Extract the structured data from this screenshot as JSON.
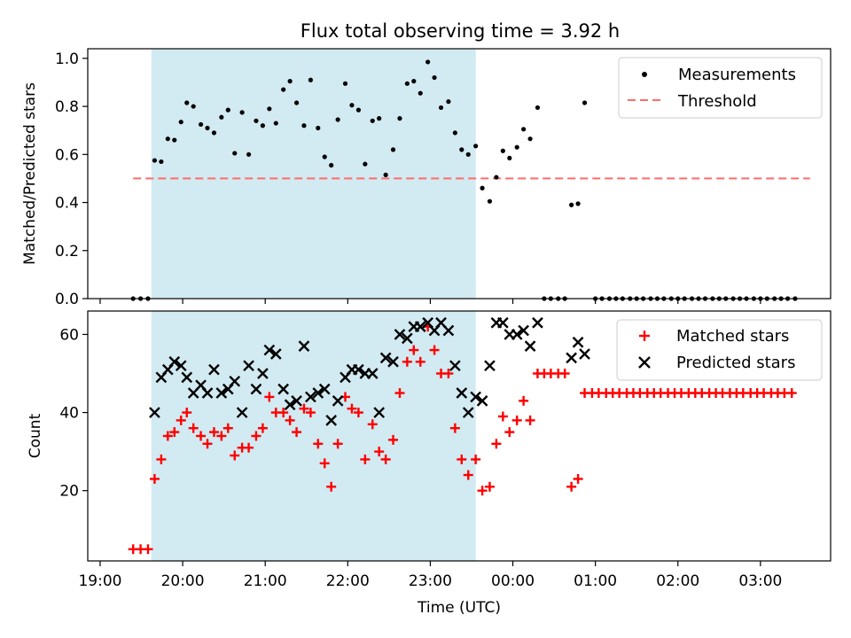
{
  "title": "Flux total observing time = 3.92 h",
  "chart_data": [
    {
      "type": "scatter",
      "ylabel": "Matched/Predicted stars",
      "ylim": [
        0,
        1.04
      ],
      "xlim_hours": [
        18.85,
        27.85
      ],
      "yticks": [
        "0.0",
        "0.2",
        "0.4",
        "0.6",
        "0.8",
        "1.0"
      ],
      "shaded_span_hours": [
        19.62,
        23.55
      ],
      "threshold": {
        "value": 0.5,
        "x_hours": [
          19.4,
          27.6
        ]
      },
      "legend": [
        "Measurements",
        "Threshold"
      ],
      "legend_position": "upper right",
      "series": [
        {
          "name": "Measurements",
          "points": [
            [
              19.4,
              0.0
            ],
            [
              19.49,
              0.0
            ],
            [
              19.58,
              0.0
            ],
            [
              19.66,
              0.575
            ],
            [
              19.74,
              0.57
            ],
            [
              19.82,
              0.665
            ],
            [
              19.9,
              0.66
            ],
            [
              19.98,
              0.735
            ],
            [
              20.05,
              0.815
            ],
            [
              20.13,
              0.8
            ],
            [
              20.22,
              0.725
            ],
            [
              20.3,
              0.71
            ],
            [
              20.38,
              0.69
            ],
            [
              20.47,
              0.755
            ],
            [
              20.55,
              0.785
            ],
            [
              20.63,
              0.605
            ],
            [
              20.72,
              0.775
            ],
            [
              20.8,
              0.6
            ],
            [
              20.89,
              0.74
            ],
            [
              20.97,
              0.72
            ],
            [
              21.05,
              0.79
            ],
            [
              21.13,
              0.73
            ],
            [
              21.22,
              0.87
            ],
            [
              21.3,
              0.905
            ],
            [
              21.38,
              0.815
            ],
            [
              21.47,
              0.72
            ],
            [
              21.55,
              0.91
            ],
            [
              21.64,
              0.71
            ],
            [
              21.72,
              0.59
            ],
            [
              21.8,
              0.555
            ],
            [
              21.88,
              0.745
            ],
            [
              21.97,
              0.895
            ],
            [
              22.05,
              0.805
            ],
            [
              22.13,
              0.785
            ],
            [
              22.21,
              0.56
            ],
            [
              22.3,
              0.74
            ],
            [
              22.38,
              0.75
            ],
            [
              22.46,
              0.515
            ],
            [
              22.55,
              0.62
            ],
            [
              22.63,
              0.75
            ],
            [
              22.72,
              0.895
            ],
            [
              22.8,
              0.905
            ],
            [
              22.88,
              0.855
            ],
            [
              22.97,
              0.985
            ],
            [
              23.05,
              0.92
            ],
            [
              23.13,
              0.795
            ],
            [
              23.22,
              0.82
            ],
            [
              23.3,
              0.69
            ],
            [
              23.38,
              0.62
            ],
            [
              23.46,
              0.6
            ],
            [
              23.55,
              0.635
            ],
            [
              23.63,
              0.46
            ],
            [
              23.72,
              0.405
            ],
            [
              23.8,
              0.505
            ],
            [
              23.88,
              0.615
            ],
            [
              23.96,
              0.585
            ],
            [
              24.05,
              0.63
            ],
            [
              24.13,
              0.705
            ],
            [
              24.21,
              0.665
            ],
            [
              24.3,
              0.795
            ],
            [
              24.38,
              0.0
            ],
            [
              24.46,
              0.0
            ],
            [
              24.55,
              0.0
            ],
            [
              24.63,
              0.0
            ],
            [
              24.71,
              0.39
            ],
            [
              24.79,
              0.395
            ],
            [
              24.87,
              0.815
            ],
            [
              25.0,
              0.0
            ],
            [
              25.08,
              0.0
            ],
            [
              25.17,
              0.0
            ],
            [
              25.25,
              0.0
            ],
            [
              25.33,
              0.0
            ],
            [
              25.42,
              0.0
            ],
            [
              25.5,
              0.0
            ],
            [
              25.58,
              0.0
            ],
            [
              25.67,
              0.0
            ],
            [
              25.75,
              0.0
            ],
            [
              25.83,
              0.0
            ],
            [
              25.92,
              0.0
            ],
            [
              26.0,
              0.0
            ],
            [
              26.08,
              0.0
            ],
            [
              26.17,
              0.0
            ],
            [
              26.25,
              0.0
            ],
            [
              26.33,
              0.0
            ],
            [
              26.42,
              0.0
            ],
            [
              26.5,
              0.0
            ],
            [
              26.58,
              0.0
            ],
            [
              26.67,
              0.0
            ],
            [
              26.75,
              0.0
            ],
            [
              26.83,
              0.0
            ],
            [
              26.92,
              0.0
            ],
            [
              27.0,
              0.0
            ],
            [
              27.08,
              0.0
            ],
            [
              27.17,
              0.0
            ],
            [
              27.25,
              0.0
            ],
            [
              27.33,
              0.0
            ],
            [
              27.42,
              0.0
            ]
          ]
        }
      ]
    },
    {
      "type": "scatter",
      "xlabel": "Time (UTC)",
      "ylabel": "Count",
      "ylim": [
        2,
        66
      ],
      "xlim_hours": [
        18.85,
        27.85
      ],
      "yticks": [
        "20",
        "40",
        "60"
      ],
      "xticks": [
        "19:00",
        "20:00",
        "21:00",
        "22:00",
        "23:00",
        "00:00",
        "01:00",
        "02:00",
        "03:00"
      ],
      "shaded_span_hours": [
        19.62,
        23.55
      ],
      "legend": [
        "Matched stars",
        "Predicted stars"
      ],
      "legend_position": "upper right",
      "series": [
        {
          "name": "Matched stars",
          "points": [
            [
              19.4,
              5
            ],
            [
              19.49,
              5
            ],
            [
              19.58,
              5
            ],
            [
              19.66,
              23
            ],
            [
              19.74,
              28
            ],
            [
              19.82,
              34
            ],
            [
              19.9,
              35
            ],
            [
              19.98,
              38
            ],
            [
              20.05,
              40
            ],
            [
              20.13,
              36
            ],
            [
              20.22,
              34
            ],
            [
              20.3,
              32
            ],
            [
              20.38,
              35
            ],
            [
              20.47,
              34
            ],
            [
              20.55,
              36
            ],
            [
              20.63,
              29
            ],
            [
              20.72,
              31
            ],
            [
              20.8,
              31
            ],
            [
              20.89,
              34
            ],
            [
              20.97,
              36
            ],
            [
              21.05,
              44
            ],
            [
              21.13,
              40
            ],
            [
              21.22,
              40
            ],
            [
              21.3,
              38
            ],
            [
              21.38,
              35
            ],
            [
              21.47,
              41
            ],
            [
              21.55,
              40
            ],
            [
              21.64,
              32
            ],
            [
              21.72,
              27
            ],
            [
              21.8,
              21
            ],
            [
              21.88,
              32
            ],
            [
              21.97,
              44
            ],
            [
              22.05,
              41
            ],
            [
              22.13,
              40
            ],
            [
              22.21,
              28
            ],
            [
              22.3,
              37
            ],
            [
              22.38,
              30
            ],
            [
              22.46,
              28
            ],
            [
              22.55,
              33
            ],
            [
              22.63,
              45
            ],
            [
              22.72,
              53
            ],
            [
              22.8,
              56
            ],
            [
              22.88,
              53
            ],
            [
              22.97,
              62
            ],
            [
              23.05,
              56
            ],
            [
              23.13,
              50
            ],
            [
              23.22,
              50
            ],
            [
              23.3,
              36
            ],
            [
              23.38,
              28
            ],
            [
              23.46,
              24
            ],
            [
              23.55,
              28
            ],
            [
              23.63,
              20
            ],
            [
              23.72,
              21
            ],
            [
              23.8,
              32
            ],
            [
              23.88,
              39
            ],
            [
              23.96,
              35
            ],
            [
              24.05,
              38
            ],
            [
              24.13,
              43
            ],
            [
              24.21,
              38
            ],
            [
              24.3,
              50
            ],
            [
              24.38,
              50
            ],
            [
              24.46,
              50
            ],
            [
              24.55,
              50
            ],
            [
              24.63,
              50
            ],
            [
              24.71,
              21
            ],
            [
              24.79,
              23
            ],
            [
              24.87,
              45
            ],
            [
              24.96,
              45
            ],
            [
              25.04,
              45
            ],
            [
              25.13,
              45
            ],
            [
              25.21,
              45
            ],
            [
              25.29,
              45
            ],
            [
              25.38,
              45
            ],
            [
              25.46,
              45
            ],
            [
              25.54,
              45
            ],
            [
              25.63,
              45
            ],
            [
              25.71,
              45
            ],
            [
              25.79,
              45
            ],
            [
              25.88,
              45
            ],
            [
              25.96,
              45
            ],
            [
              26.04,
              45
            ],
            [
              26.13,
              45
            ],
            [
              26.21,
              45
            ],
            [
              26.29,
              45
            ],
            [
              26.38,
              45
            ],
            [
              26.46,
              45
            ],
            [
              26.54,
              45
            ],
            [
              26.63,
              45
            ],
            [
              26.71,
              45
            ],
            [
              26.79,
              45
            ],
            [
              26.88,
              45
            ],
            [
              26.96,
              45
            ],
            [
              27.04,
              45
            ],
            [
              27.13,
              45
            ],
            [
              27.21,
              45
            ],
            [
              27.29,
              45
            ],
            [
              27.38,
              45
            ]
          ]
        },
        {
          "name": "Predicted stars",
          "points": [
            [
              19.66,
              40
            ],
            [
              19.74,
              49
            ],
            [
              19.82,
              51
            ],
            [
              19.9,
              53
            ],
            [
              19.98,
              52
            ],
            [
              20.05,
              49
            ],
            [
              20.13,
              45
            ],
            [
              20.22,
              47
            ],
            [
              20.3,
              45
            ],
            [
              20.38,
              51
            ],
            [
              20.47,
              45
            ],
            [
              20.55,
              46
            ],
            [
              20.63,
              48
            ],
            [
              20.72,
              40
            ],
            [
              20.8,
              52
            ],
            [
              20.89,
              46
            ],
            [
              20.97,
              50
            ],
            [
              21.05,
              56
            ],
            [
              21.13,
              55
            ],
            [
              21.22,
              46
            ],
            [
              21.3,
              42
            ],
            [
              21.38,
              43
            ],
            [
              21.47,
              57
            ],
            [
              21.55,
              44
            ],
            [
              21.64,
              45
            ],
            [
              21.72,
              46
            ],
            [
              21.8,
              38
            ],
            [
              21.88,
              43
            ],
            [
              21.97,
              49
            ],
            [
              22.05,
              51
            ],
            [
              22.13,
              51
            ],
            [
              22.21,
              50
            ],
            [
              22.3,
              50
            ],
            [
              22.38,
              40
            ],
            [
              22.46,
              54
            ],
            [
              22.55,
              53
            ],
            [
              22.63,
              60
            ],
            [
              22.72,
              59
            ],
            [
              22.8,
              62
            ],
            [
              22.88,
              62
            ],
            [
              22.97,
              63
            ],
            [
              23.05,
              61
            ],
            [
              23.13,
              63
            ],
            [
              23.22,
              61
            ],
            [
              23.3,
              52
            ],
            [
              23.38,
              45
            ],
            [
              23.46,
              40
            ],
            [
              23.55,
              44
            ],
            [
              23.63,
              43
            ],
            [
              23.72,
              52
            ],
            [
              23.8,
              63
            ],
            [
              23.88,
              63
            ],
            [
              23.96,
              60
            ],
            [
              24.05,
              60
            ],
            [
              24.13,
              61
            ],
            [
              24.21,
              57
            ],
            [
              24.3,
              63
            ],
            [
              24.71,
              54
            ],
            [
              24.79,
              58
            ],
            [
              24.87,
              55
            ]
          ]
        }
      ]
    }
  ]
}
